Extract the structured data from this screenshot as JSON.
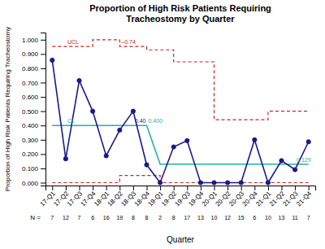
{
  "chart_data": {
    "type": "line",
    "title": "Proportion of High Risk Patients Requiring\nTracheostomy by Quarter",
    "x_label": "Quarter",
    "y_label": "Proportion of High Risk Patients Requiring Tracheostomy",
    "categories": [
      "17-Q1",
      "17-Q2",
      "17-Q3",
      "17-Q4",
      "18-Q1",
      "18-Q2",
      "18-Q3",
      "18-Q4",
      "19-Q1",
      "19-Q2",
      "19-Q3",
      "19-Q4",
      "20-Q1",
      "20-Q2",
      "20-Q3",
      "20-Q4",
      "21-Q1",
      "21-Q2",
      "21-Q3",
      "21-Q4"
    ],
    "series": [
      {
        "type": "step",
        "color": "#CC2222",
        "line_style": "dashed",
        "values": [
          0.952,
          0.952,
          0.952,
          1.0,
          1.0,
          0.952,
          0.952,
          0.929,
          0.929,
          0.845,
          0.845,
          0.845,
          0.44,
          0.44,
          0.44,
          0.44,
          0.5,
          0.5,
          0.5,
          0.5
        ]
      },
      {
        "type": "step",
        "color": "#CC2222",
        "line_style": "dashed",
        "values": [
          0,
          0,
          0,
          0,
          0,
          0.05,
          0.05,
          0.05,
          0,
          0,
          0,
          0,
          0,
          0,
          0,
          0,
          0,
          0,
          0,
          0
        ]
      },
      {
        "type": "line",
        "color": "#20B2AA",
        "line_style": "solid",
        "values": [
          0.4,
          0.4,
          0.4,
          0.4,
          0.4,
          0.4,
          0.4,
          0.4,
          0.129,
          0.129,
          0.129,
          0.129,
          0.129,
          0.129,
          0.129,
          0.129,
          0.129,
          0.129,
          0.129,
          0.129
        ]
      },
      {
        "type": "line",
        "color": "#1a1a8c",
        "line_style": "solid",
        "marker": "circle",
        "values": [
          0.857,
          0.167,
          0.714,
          0.5,
          0.188,
          0.368,
          0.5,
          0.125,
          0,
          0.25,
          0.294,
          0,
          0,
          0,
          0,
          0.3,
          0,
          0.154,
          0.091,
          0.286
        ]
      }
    ],
    "ylim": [
      -0.02,
      1.05
    ],
    "yticks": [
      {
        "value": 0,
        "label": "0.000"
      },
      {
        "value": 0.1,
        "label": "0.100"
      },
      {
        "value": 0.2,
        "label": "0.200"
      },
      {
        "value": 0.3,
        "label": "0.300"
      },
      {
        "value": 0.4,
        "label": "0.400"
      },
      {
        "value": 0.5,
        "label": "0.500"
      },
      {
        "value": 0.6,
        "label": "0.600"
      },
      {
        "value": 0.7,
        "label": "0.700"
      },
      {
        "value": 0.8,
        "label": "0.800"
      },
      {
        "value": 0.9,
        "label": "0.900"
      },
      {
        "value": 1.0,
        "label": "1.000"
      }
    ],
    "grid": false,
    "n_label": "N =",
    "n_values": [
      7,
      12,
      7,
      6,
      16,
      19,
      8,
      8,
      2,
      8,
      17,
      13,
      10,
      12,
      15,
      6,
      10,
      13,
      11,
      7
    ],
    "annotations": [
      {
        "text": "UCL",
        "x": "17-Q2",
        "y": 0.952,
        "color": "#CC2222"
      },
      {
        "text": "–0.74",
        "x": "18-Q2",
        "y": 0.952,
        "color": "#CC2222"
      },
      {
        "text": "CL",
        "x": "17-Q2",
        "y": 0.4,
        "color": "#20B2AA"
      },
      {
        "text": "0.40",
        "x": "18-Q3",
        "y": 0.4,
        "color": "#1a1a8c"
      },
      {
        "text": "0.400",
        "x": "18-Q4",
        "y": 0.4,
        "color": "#20B2AA"
      },
      {
        "text": "0.129",
        "x": "21-Q3",
        "y": 0.129,
        "color": "#20B2AA"
      }
    ]
  }
}
